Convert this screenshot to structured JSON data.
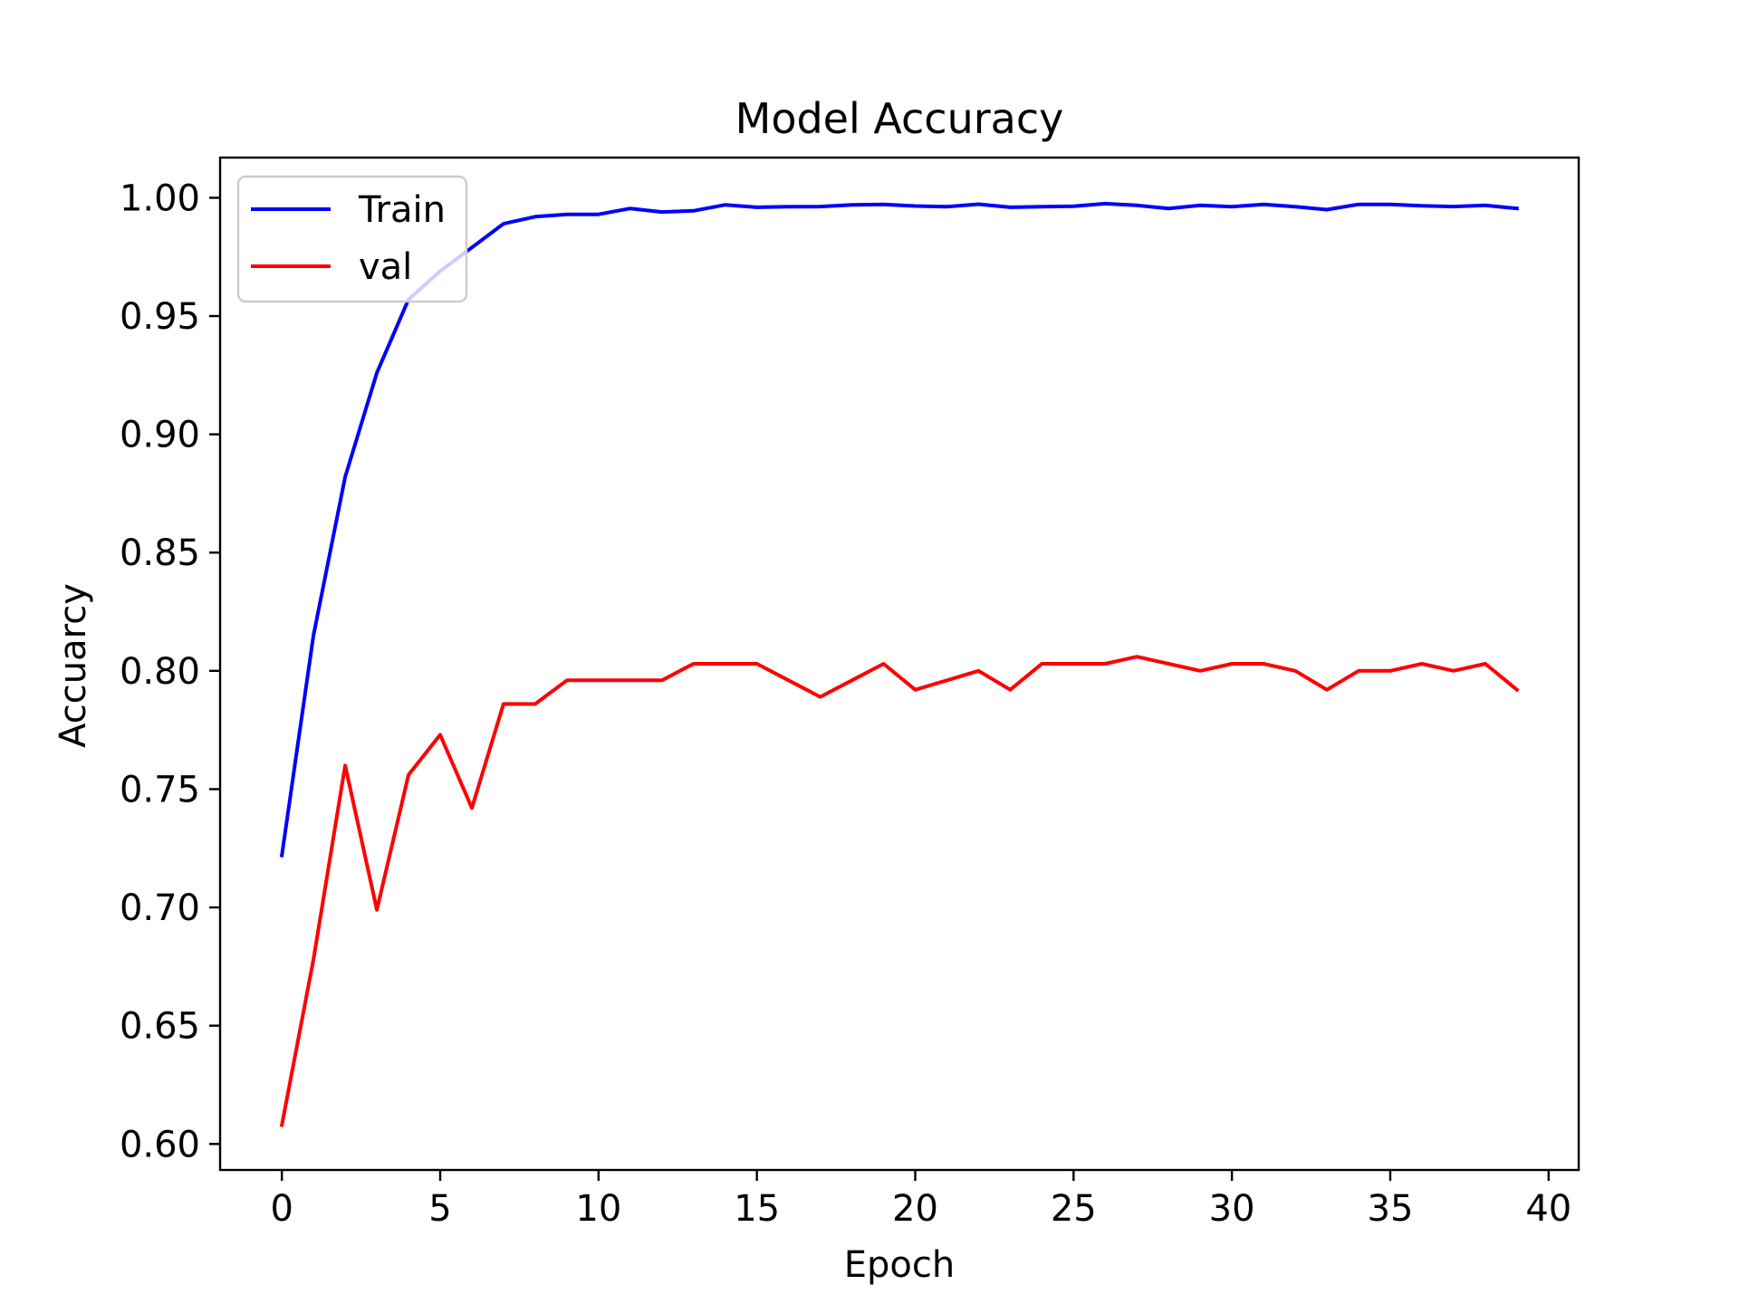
{
  "chart_data": {
    "type": "line",
    "title": "Model Accuracy",
    "xlabel": "Epoch",
    "ylabel": "Accuarcy",
    "xlim": [
      -1.95,
      40.95
    ],
    "ylim": [
      0.589,
      1.017
    ],
    "xticks": [
      0,
      5,
      10,
      15,
      20,
      25,
      30,
      35,
      40
    ],
    "xtick_labels": [
      "0",
      "5",
      "10",
      "15",
      "20",
      "25",
      "30",
      "35",
      "40"
    ],
    "yticks": [
      0.6,
      0.65,
      0.7,
      0.75,
      0.8,
      0.85,
      0.9,
      0.95,
      1.0
    ],
    "ytick_labels": [
      "0.60",
      "0.65",
      "0.70",
      "0.75",
      "0.80",
      "0.85",
      "0.90",
      "0.95",
      "1.00"
    ],
    "grid": false,
    "legend_position": "upper left",
    "x": [
      0,
      1,
      2,
      3,
      4,
      5,
      6,
      7,
      8,
      9,
      10,
      11,
      12,
      13,
      14,
      15,
      16,
      17,
      18,
      19,
      20,
      21,
      22,
      23,
      24,
      25,
      26,
      27,
      28,
      29,
      30,
      31,
      32,
      33,
      34,
      35,
      36,
      37,
      38,
      39
    ],
    "series": [
      {
        "name": "Train",
        "color": "#0000ff",
        "values": [
          0.722,
          0.815,
          0.882,
          0.926,
          0.957,
          0.969,
          0.979,
          0.989,
          0.992,
          0.993,
          0.993,
          0.9955,
          0.994,
          0.9945,
          0.997,
          0.996,
          0.9962,
          0.9963,
          0.997,
          0.9972,
          0.9965,
          0.9962,
          0.9973,
          0.996,
          0.9962,
          0.9964,
          0.9975,
          0.9968,
          0.9955,
          0.9968,
          0.9962,
          0.9972,
          0.9962,
          0.995,
          0.9972,
          0.9972,
          0.9966,
          0.9963,
          0.9968,
          0.9955
        ]
      },
      {
        "name": "val",
        "color": "#ff0000",
        "values": [
          0.608,
          0.678,
          0.76,
          0.699,
          0.756,
          0.773,
          0.742,
          0.786,
          0.786,
          0.796,
          0.796,
          0.796,
          0.796,
          0.803,
          0.803,
          0.803,
          0.796,
          0.789,
          0.796,
          0.803,
          0.792,
          0.796,
          0.8,
          0.792,
          0.803,
          0.803,
          0.803,
          0.806,
          0.803,
          0.8,
          0.803,
          0.803,
          0.8,
          0.792,
          0.8,
          0.8,
          0.803,
          0.8,
          0.803,
          0.792
        ]
      }
    ]
  }
}
